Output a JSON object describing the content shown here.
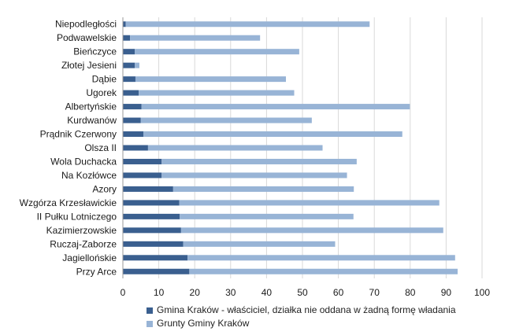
{
  "chart_data": {
    "type": "bar",
    "orientation": "horizontal",
    "stacked": true,
    "categories": [
      "Niepodległości",
      "Podwawelskie",
      "Bieńczyce",
      "Złotej Jesieni",
      "Dąbie",
      "Ugorek",
      "Albertyńskie",
      "Kurdwanów",
      "Prądnik Czerwony",
      "Olsza II",
      "Wola Duchacka",
      "Na Kozłówce",
      "Azory",
      "Wzgórza Krzesławickie",
      "II Pułku Lotniczego",
      "Kazimierzowskie",
      "Ruczaj-Zaborze",
      "Jagiellońskie",
      "Przy Arce"
    ],
    "series": [
      {
        "name": "Gmina Kraków - właściciel, działka nie oddana w żadną formę władania",
        "color": "#3a5f8f",
        "values": [
          0.8,
          2.0,
          3.3,
          3.3,
          3.5,
          4.4,
          5.2,
          5.0,
          5.7,
          7.0,
          10.8,
          10.8,
          14.0,
          15.7,
          15.8,
          16.2,
          16.8,
          18.0,
          18.5
        ]
      },
      {
        "name": "Grunty Gminy Kraków",
        "color": "#98b4d6",
        "values": [
          67.9,
          36.2,
          45.8,
          1.3,
          41.9,
          43.3,
          74.7,
          47.6,
          72.1,
          48.6,
          54.3,
          51.6,
          50.3,
          72.4,
          48.4,
          73.0,
          42.3,
          74.5,
          74.7
        ]
      }
    ],
    "x_ticks": [
      "0",
      "10",
      "20",
      "30",
      "40",
      "50",
      "60",
      "70",
      "80",
      "90",
      "100"
    ],
    "xlim": [
      0,
      100
    ],
    "grid": "vertical",
    "legend_position": "bottom"
  }
}
